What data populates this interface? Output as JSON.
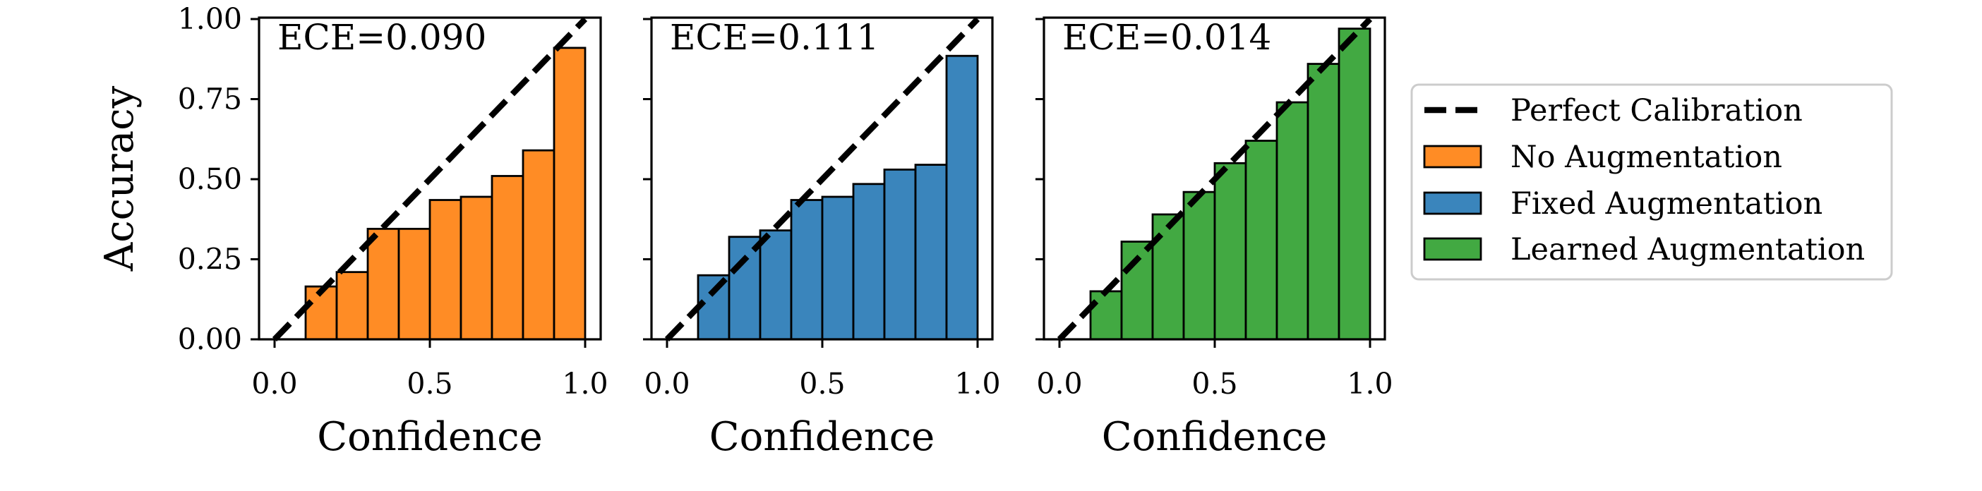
{
  "chart_data": [
    {
      "type": "bar",
      "annotation": "ECE=0.090",
      "xlabel": "Confidence",
      "ylabel": "Accuracy",
      "xlim": [
        0,
        1
      ],
      "ylim": [
        0,
        1
      ],
      "x_ticks": [
        "0.0",
        "0.5",
        "1.0"
      ],
      "y_ticks": [
        "0.00",
        "0.25",
        "0.50",
        "0.75",
        "1.00"
      ],
      "bin_edges": [
        0.1,
        0.2,
        0.3,
        0.4,
        0.5,
        0.6,
        0.7,
        0.8,
        0.9,
        1.0
      ],
      "series": [
        {
          "name": "No Augmentation",
          "values": [
            0.165,
            0.21,
            0.345,
            0.345,
            0.435,
            0.445,
            0.51,
            0.59,
            0.91
          ],
          "color": "#ff8c25"
        }
      ],
      "reference_line": {
        "name": "Perfect Calibration",
        "x": [
          0,
          1
        ],
        "y": [
          0,
          1
        ]
      }
    },
    {
      "type": "bar",
      "annotation": "ECE=0.111",
      "xlabel": "Confidence",
      "ylabel": "",
      "xlim": [
        0,
        1
      ],
      "ylim": [
        0,
        1
      ],
      "x_ticks": [
        "0.0",
        "0.5",
        "1.0"
      ],
      "y_ticks": [],
      "bin_edges": [
        0.1,
        0.2,
        0.3,
        0.4,
        0.5,
        0.6,
        0.7,
        0.8,
        0.9,
        1.0
      ],
      "series": [
        {
          "name": "Fixed Augmentation",
          "values": [
            0.2,
            0.32,
            0.34,
            0.435,
            0.445,
            0.485,
            0.53,
            0.545,
            0.885
          ],
          "color": "#3a85bc"
        }
      ],
      "reference_line": {
        "name": "Perfect Calibration",
        "x": [
          0,
          1
        ],
        "y": [
          0,
          1
        ]
      }
    },
    {
      "type": "bar",
      "annotation": "ECE=0.014",
      "xlabel": "Confidence",
      "ylabel": "",
      "xlim": [
        0,
        1
      ],
      "ylim": [
        0,
        1
      ],
      "x_ticks": [
        "0.0",
        "0.5",
        "1.0"
      ],
      "y_ticks": [],
      "bin_edges": [
        0.1,
        0.2,
        0.3,
        0.4,
        0.5,
        0.6,
        0.7,
        0.8,
        0.9,
        1.0
      ],
      "series": [
        {
          "name": "Learned Augmentation",
          "values": [
            0.15,
            0.305,
            0.39,
            0.46,
            0.55,
            0.62,
            0.74,
            0.86,
            0.97
          ],
          "color": "#42a942"
        }
      ],
      "reference_line": {
        "name": "Perfect Calibration",
        "x": [
          0,
          1
        ],
        "y": [
          0,
          1
        ]
      }
    }
  ],
  "legend": {
    "placement": "right",
    "entries": [
      {
        "label": "Perfect Calibration",
        "kind": "dashed-line",
        "color": "#000000"
      },
      {
        "label": "No Augmentation",
        "kind": "patch",
        "color": "#ff8c25"
      },
      {
        "label": "Fixed Augmentation",
        "kind": "patch",
        "color": "#3a85bc"
      },
      {
        "label": "Learned Augmentation",
        "kind": "patch",
        "color": "#42a942"
      }
    ]
  }
}
